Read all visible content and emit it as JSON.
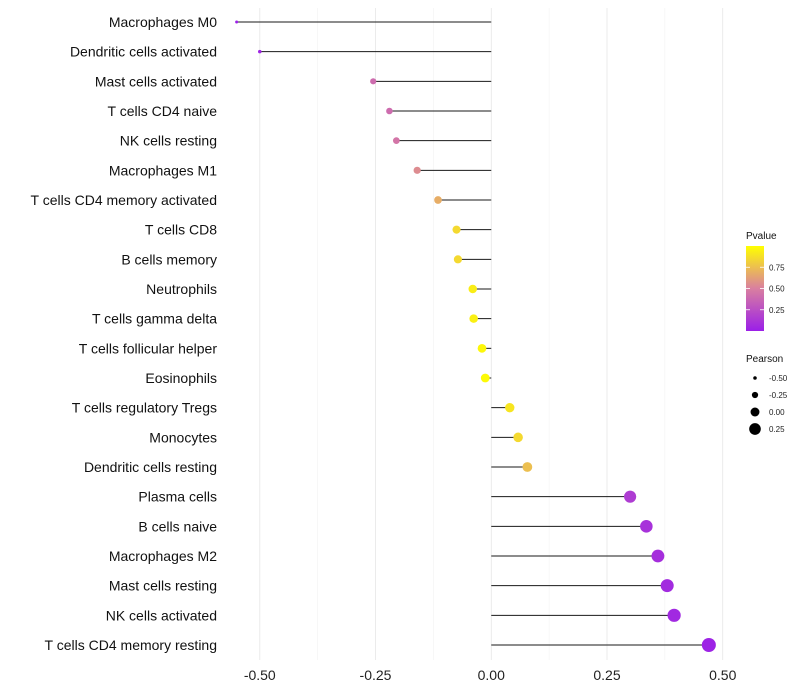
{
  "chart_data": {
    "type": "lollipop",
    "title": "",
    "xlabel": "",
    "ylabel": "",
    "xlim": [
      -0.56,
      0.52
    ],
    "xticks": [
      -0.5,
      -0.25,
      0.0,
      0.25,
      0.5
    ],
    "xtick_labels": [
      "-0.50",
      "-0.25",
      "0.00",
      "0.25",
      "0.50"
    ],
    "categories": [
      "Macrophages M0",
      "Dendritic cells activated",
      "Mast cells activated",
      "T cells CD4 naive",
      "NK cells resting",
      "Macrophages M1",
      "T cells CD4 memory activated",
      "T cells CD8",
      "B cells memory",
      "Neutrophils",
      "T cells gamma delta",
      "T cells follicular helper",
      "Eosinophils",
      "T cells regulatory  Tregs",
      "Monocytes",
      "Dendritic cells resting",
      "Plasma cells",
      "B cells naive",
      "Macrophages M2",
      "Mast cells resting",
      "NK cells activated",
      "T cells CD4 memory resting"
    ],
    "pearson": [
      -0.55,
      -0.5,
      -0.255,
      -0.22,
      -0.205,
      -0.16,
      -0.115,
      -0.075,
      -0.072,
      -0.04,
      -0.038,
      -0.02,
      -0.013,
      0.04,
      0.058,
      0.078,
      0.3,
      0.335,
      0.36,
      0.38,
      0.395,
      0.47
    ],
    "pvalue": [
      0.01,
      0.03,
      0.4,
      0.4,
      0.45,
      0.55,
      0.68,
      0.85,
      0.85,
      0.93,
      0.94,
      0.97,
      0.98,
      0.9,
      0.85,
      0.75,
      0.15,
      0.1,
      0.08,
      0.06,
      0.05,
      0.02
    ],
    "legend_pvalue": {
      "title": "Pvalue",
      "ticks": [
        0.25,
        0.5,
        0.75
      ],
      "tick_labels": [
        "0.25",
        "0.50",
        "0.75"
      ],
      "range": [
        0.0,
        1.0
      ],
      "color_low": "#9b1fe8",
      "color_mid": "#d97fa0",
      "color_high": "#ffff00"
    },
    "legend_pearson": {
      "title": "Pearson",
      "values": [
        -0.5,
        -0.25,
        0.0,
        0.25
      ],
      "labels": [
        "-0.50",
        "-0.25",
        "0.00",
        "0.25"
      ]
    },
    "grid": true,
    "legend_position": "right"
  }
}
